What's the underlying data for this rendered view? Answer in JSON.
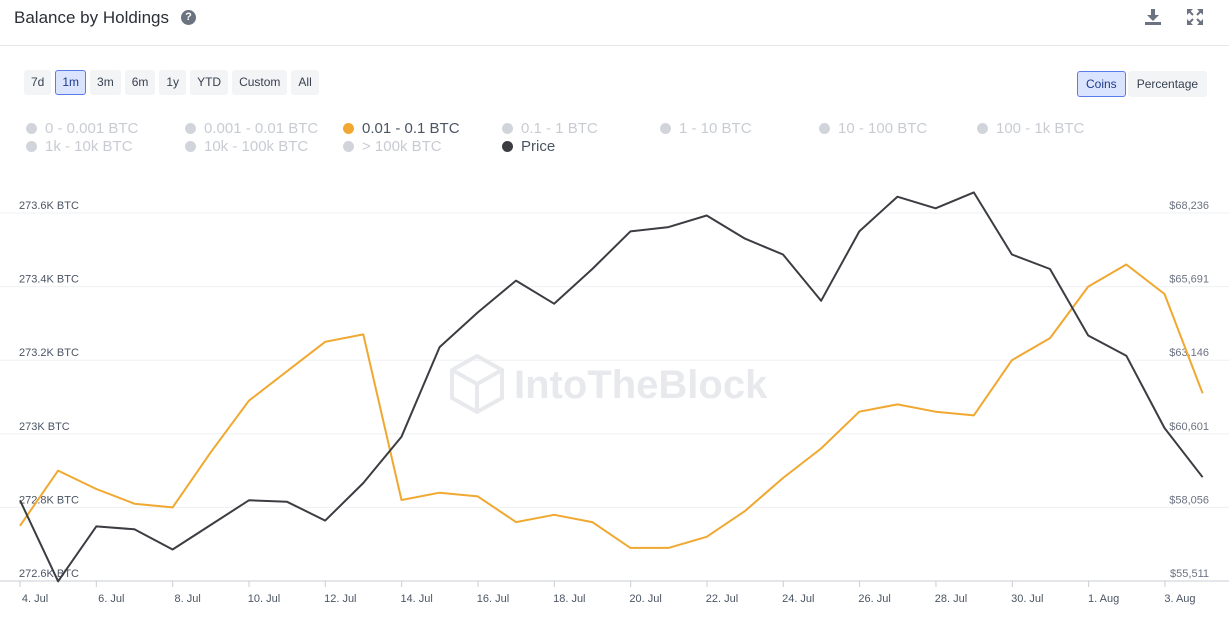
{
  "header": {
    "title": "Balance by Holdings",
    "help_icon": "question-circle-icon",
    "download_icon": "download-icon",
    "expand_icon": "expand-icon"
  },
  "range_buttons": [
    {
      "label": "7d",
      "active": false
    },
    {
      "label": "1m",
      "active": true
    },
    {
      "label": "3m",
      "active": false
    },
    {
      "label": "6m",
      "active": false
    },
    {
      "label": "1y",
      "active": false
    },
    {
      "label": "YTD",
      "active": false
    },
    {
      "label": "Custom",
      "active": false
    },
    {
      "label": "All",
      "active": false
    }
  ],
  "mode_buttons": [
    {
      "label": "Coins",
      "active": true
    },
    {
      "label": "Percentage",
      "active": false
    }
  ],
  "watermark": "IntoTheBlock",
  "chart_data": {
    "type": "line",
    "legend": [
      {
        "label": "0 - 0.001 BTC",
        "enabled": false,
        "color": "#d1d5db"
      },
      {
        "label": "0.001 - 0.01 BTC",
        "enabled": false,
        "color": "#d1d5db"
      },
      {
        "label": "0.01 - 0.1 BTC",
        "enabled": true,
        "color": "#f0a830"
      },
      {
        "label": "0.1 - 1 BTC",
        "enabled": false,
        "color": "#d1d5db"
      },
      {
        "label": "1 - 10 BTC",
        "enabled": false,
        "color": "#d1d5db"
      },
      {
        "label": "10 - 100 BTC",
        "enabled": false,
        "color": "#d1d5db"
      },
      {
        "label": "100 - 1k BTC",
        "enabled": false,
        "color": "#d1d5db"
      },
      {
        "label": "1k - 10k BTC",
        "enabled": false,
        "color": "#d1d5db"
      },
      {
        "label": "10k - 100k BTC",
        "enabled": false,
        "color": "#d1d5db"
      },
      {
        "label": "> 100k BTC",
        "enabled": false,
        "color": "#d1d5db"
      },
      {
        "label": "Price",
        "enabled": true,
        "color": "#3b3d42"
      }
    ],
    "x_tick_labels": [
      "4. Jul",
      "6. Jul",
      "8. Jul",
      "10. Jul",
      "12. Jul",
      "14. Jul",
      "16. Jul",
      "18. Jul",
      "20. Jul",
      "22. Jul",
      "24. Jul",
      "26. Jul",
      "28. Jul",
      "30. Jul",
      "1. Aug",
      "3. Aug"
    ],
    "left_axis": {
      "ticks": [
        272.6,
        272.8,
        273.0,
        273.2,
        273.4,
        273.6
      ],
      "tick_labels": [
        "272.6K BTC",
        "272.8K BTC",
        "273K BTC",
        "273.2K BTC",
        "273.4K BTC",
        "273.6K BTC"
      ],
      "range": [
        272.6,
        273.6
      ]
    },
    "right_axis": {
      "ticks": [
        55511,
        58056,
        60601,
        63146,
        65691,
        68236
      ],
      "tick_labels": [
        "$55,511",
        "$58,056",
        "$60,601",
        "$63,146",
        "$65,691",
        "$68,236"
      ],
      "range": [
        55511,
        68236
      ]
    },
    "x_range": [
      0,
      31
    ],
    "series": [
      {
        "name": "0.01 - 0.1 BTC",
        "axis": "left",
        "color": "#f0a830",
        "values": [
          272.75,
          272.9,
          272.85,
          272.81,
          272.8,
          272.95,
          273.09,
          273.17,
          273.25,
          273.27,
          272.82,
          272.84,
          272.83,
          272.76,
          272.78,
          272.76,
          272.69,
          272.69,
          272.72,
          272.79,
          272.88,
          272.96,
          273.06,
          273.08,
          273.06,
          273.05,
          273.2,
          273.26,
          273.4,
          273.46,
          273.38,
          273.11
        ]
      },
      {
        "name": "Price",
        "axis": "right",
        "color": "#3b3d42",
        "values": [
          58300,
          55500,
          57400,
          57300,
          56600,
          57450,
          58300,
          58250,
          57600,
          58900,
          60500,
          63600,
          64800,
          65900,
          65100,
          66300,
          67600,
          67750,
          68150,
          67350,
          66800,
          65200,
          67600,
          68800,
          68400,
          68950,
          66800,
          66300,
          64000,
          63300,
          60800,
          59100
        ]
      }
    ]
  }
}
